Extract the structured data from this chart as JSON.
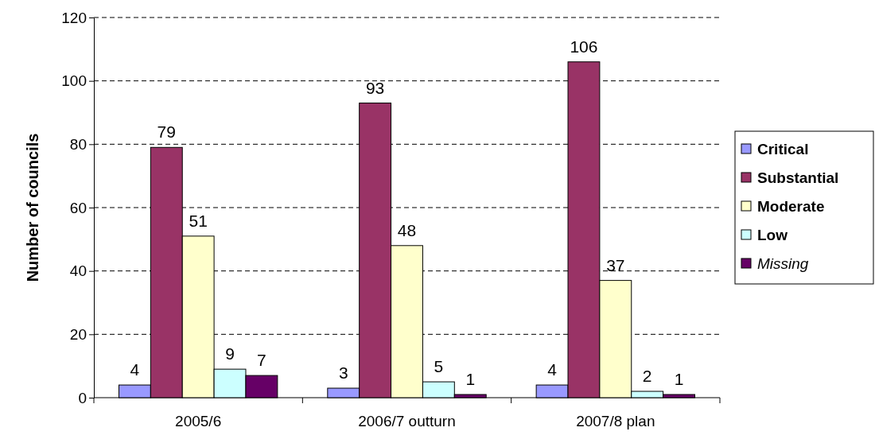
{
  "chart_data": {
    "type": "bar",
    "ylabel": "Number of councils",
    "categories": [
      "2005/6",
      "2006/7 outturn",
      "2007/8 plan"
    ],
    "series": [
      {
        "name": "Critical",
        "color": "#9999ff",
        "values": [
          4,
          3,
          4
        ]
      },
      {
        "name": "Substantial",
        "color": "#993366",
        "values": [
          79,
          93,
          106
        ]
      },
      {
        "name": "Moderate",
        "color": "#ffffcc",
        "values": [
          51,
          48,
          37
        ]
      },
      {
        "name": "Low",
        "color": "#ccffff",
        "values": [
          9,
          5,
          2
        ]
      },
      {
        "name": "Missing",
        "color": "#660066",
        "values": [
          7,
          1,
          1
        ]
      }
    ],
    "ylim": [
      0,
      120
    ],
    "yticks": [
      0,
      20,
      40,
      60,
      80,
      100,
      120
    ],
    "grid": "y",
    "legend": "right",
    "data_labels": true
  }
}
